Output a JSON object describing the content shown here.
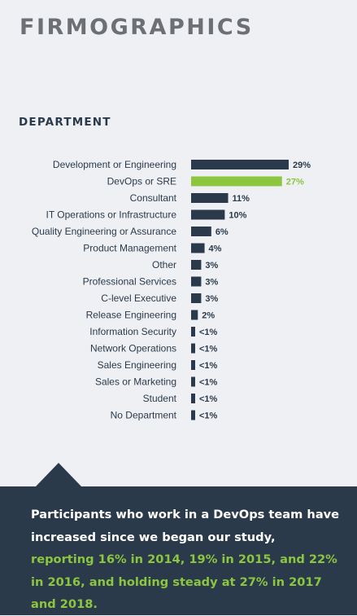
{
  "page": {
    "title": "FIRMOGRAPHICS",
    "section_title": "DEPARTMENT"
  },
  "colors": {
    "bar": "#2b3a4b",
    "highlight": "#8cc63f",
    "callout_bg": "#2b3a4b"
  },
  "chart_data": {
    "type": "bar",
    "orientation": "horizontal",
    "title": "",
    "xlabel": "",
    "ylabel": "",
    "xlim": [
      0,
      29
    ],
    "grid": false,
    "highlight_category": "DevOps or SRE",
    "categories": [
      "Development or Engineering",
      "DevOps or SRE",
      "Consultant",
      "IT Operations or Infrastructure",
      "Quality Engineering or Assurance",
      "Product Management",
      "Other",
      "Professional Services",
      "C-level Executive",
      "Release Engineering",
      "Information Security",
      "Network Operations",
      "Sales Engineering",
      "Sales or Marketing",
      "Student",
      "No  Department"
    ],
    "values": [
      29,
      27,
      11,
      10,
      6,
      4,
      3,
      3,
      3,
      2,
      0.5,
      0.5,
      0.5,
      0.5,
      0.5,
      0.5
    ],
    "value_labels": [
      "29%",
      "27%",
      "11%",
      "10%",
      "6%",
      "4%",
      "3%",
      "3%",
      "3%",
      "2%",
      "<1%",
      "<1%",
      "<1%",
      "<1%",
      "<1%",
      "<1%"
    ]
  },
  "callout": {
    "text_plain": "Participants who work in a DevOps team have increased since we began our study, ",
    "text_highlight": "reporting 16% in 2014, 19% in 2015, and 22% in 2016, and holding steady at 27% in 2017 and 2018."
  }
}
